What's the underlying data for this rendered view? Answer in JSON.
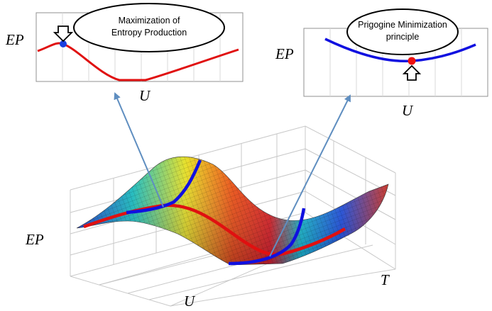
{
  "left_panel": {
    "y_label": "EP",
    "x_label": "U",
    "bubble_line1": "Maximization of",
    "bubble_line2": "Entropy Production"
  },
  "right_panel": {
    "y_label": "EP",
    "x_label": "U",
    "bubble_line1": "Prigogine Minimization",
    "bubble_line2": "principle"
  },
  "surface_plot": {
    "z_label": "EP",
    "x_label": "U",
    "y_label": "T"
  },
  "colors": {
    "max_curve": "#e01010",
    "min_curve": "#1010e0",
    "max_point": "#1a3fe0",
    "min_point": "#ee1010",
    "arrow": "#5f8ec0"
  },
  "icons": [
    "down-arrow-icon",
    "up-arrow-icon"
  ]
}
